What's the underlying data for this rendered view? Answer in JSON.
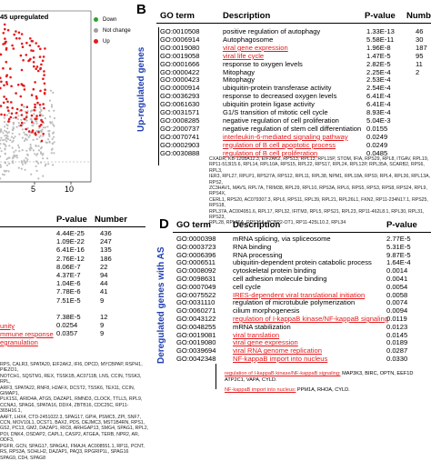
{
  "panelA": {
    "upregulated_label": "45 upregulated",
    "legend": [
      {
        "label": "Down",
        "color": "#2ca02c"
      },
      {
        "label": "Not change",
        "color": "#9e9e9e"
      },
      {
        "label": "Up",
        "color": "#e41a1c"
      }
    ],
    "xticks": [
      "5",
      "10"
    ]
  },
  "panelB": {
    "label": "B",
    "vertical_label": "Up-regulated genes",
    "headers": {
      "go": "GO term",
      "desc": "Description",
      "p": "P-value",
      "n": "Numb"
    },
    "rows": [
      {
        "go": "GO:0010508",
        "desc": "positive regulation of autophagy",
        "p": "1.33E-13",
        "n": "46",
        "red": false
      },
      {
        "go": "GO:0006914",
        "desc": "Autophagosome",
        "p": "5.58E-11",
        "n": "30",
        "red": false
      },
      {
        "go": "GO:0019080",
        "desc": "viral gene expression",
        "p": "1.96E-8",
        "n": "187",
        "red": true
      },
      {
        "go": "GO:0019058",
        "desc": "viral life cycle",
        "p": "1.47E-5",
        "n": "95",
        "red": true
      },
      {
        "go": "GO:0001666",
        "desc": "response to oxygen levels",
        "p": "2.82E-5",
        "n": "11",
        "red": false
      },
      {
        "go": "GO:0000422",
        "desc": "Mitophagy",
        "p": "2.25E-4",
        "n": "2",
        "red": false
      },
      {
        "go": "GO:0000423",
        "desc": "Mitophagy",
        "p": "2.53E-4",
        "n": "",
        "red": false
      },
      {
        "go": "GO:0000914",
        "desc": "ubiquitin-protein transferase activity",
        "p": "2.54E-4",
        "n": "",
        "red": false
      },
      {
        "go": "GO:0036293",
        "desc": "response to decreased oxygen levels",
        "p": "6.41E-4",
        "n": "",
        "red": false
      },
      {
        "go": "GO:0061630",
        "desc": "ubiquitin protein ligase activity",
        "p": "6.41E-4",
        "n": "",
        "red": false
      },
      {
        "go": "GO:0031571",
        "desc": "G1/S transition of mitotic cell cycle",
        "p": "8.93E-4",
        "n": "",
        "red": false
      },
      {
        "go": "GO:0008285",
        "desc": "negative regulation of cell proliferation",
        "p": "5.04E-3",
        "n": "",
        "red": false
      },
      {
        "go": "GO:2000737",
        "desc": "negative regulation of stem cell differentiation",
        "p": "0.0155",
        "n": "",
        "red": false
      },
      {
        "go": "GO:0070741",
        "desc": "interleukin-6-mediated signaling pathway",
        "p": "0.0249",
        "n": "",
        "red": true
      },
      {
        "go": "GO:0002903",
        "desc": "regulation of B cell apoptotic process",
        "p": "0.0249",
        "n": "",
        "red": true
      },
      {
        "go": "GO:0030888",
        "desc": "regulation of B cell proliferation",
        "p": "0.0485",
        "n": "",
        "red": true
      }
    ],
    "genes": [
      "CXADR, KB-1208A12.3, EIF2AK2, RPS13, RPL13, RPL15P, STOM, IFIA, RPS29, RPL8, ITGAV, RPL19,",
      "RP11-513I15.6, RPL14, RPL10A, RPS15, RPL22, RPS17, RPL24, RPL12P, RPL35A, SCARB2, RPS6, RPL3,",
      "IER3, RPL27, RPLP1, RPS27A, RPS12, RPL11, RPL38, NPM1, RPL18A, RPS9, RPL4, RPL36, RPL13A, RPS2,",
      "ZC3HAV1, MAVS, RPL7A, TRIM38, RPL29, RPL10, RPS3A, RPL6, RPS5, RPS3, RPS8, RPS24, RPL9, RPS4X,",
      "CERL1, RPS20, AC079307.3, RPL6, RPS11, RPL39, RPL21, RPL26L1, FKN2, RP11-234N17.1, RPS25, RPS18,",
      "RPL37A, AC004951.6, RPL17, RPL32, IFITM3, RPL5, RPS21, RPL23, RP11-462L8.1, RPL30, RPL31, RPS23,",
      "RPL28, RPL36A, RPS15A, PCBP2-OT1, RP11-425L10.2, RPL34"
    ]
  },
  "panelC": {
    "headers": {
      "p": "P-value",
      "n": "Number"
    },
    "rows": [
      {
        "p": "4.44E-25",
        "n": "436"
      },
      {
        "p": "1.09E-22",
        "n": "247"
      },
      {
        "p": "6.41E-16",
        "n": "135"
      },
      {
        "p": "2.76E-12",
        "n": "186"
      },
      {
        "p": "8.06E-7",
        "n": "22"
      },
      {
        "p": "4.37E-7",
        "n": "94"
      },
      {
        "p": "1.04E-6",
        "n": "44"
      },
      {
        "p": "7.78E-6",
        "n": "41"
      },
      {
        "p": "7.51E-5",
        "n": "9"
      },
      {
        "p": "",
        "n": ""
      },
      {
        "p": "7.38E-5",
        "n": "12"
      },
      {
        "p": "0.0254",
        "n": "9"
      },
      {
        "p": "0.0357",
        "n": "9"
      }
    ],
    "red_fragments": [
      "unity",
      "mmune response",
      "egranulation"
    ],
    "genes": [
      "RPS, CALR3, SPATA20, EIF2AK2, IFI6, DPCD, MYCBPAP, RSPH1, PIEZO1,",
      "NOTCH1, SQSTM1, REX, TSSK1B, AC0711B, LNS, CCIN, TSSK3, RPL,",
      "ARF3, SPATA22, RNF8, H2AFX, DCST2, TSSK6, TEX11, CCIN, GIMAP1,",
      "PLK1S1, ARID4A, ATG5, DAZAP1, RMND3, CLOCK, TTLL5, RPL9,",
      "CCNA1, SPAG6, SPATA16, DDX4, ZBTB16, CDC25C, RP11-365H16.1,",
      "AAFT, LHX4, CTD-2451022.3, SPAG17, GPI4, PSMC5, ZPI, SNF7,",
      "CCN, MOV10L1, DCST1, BAX2, PDS, DEJMC3, MST1B4RN, RPS1,",
      "GS2, PC13, GM2, DAZAP1, RIC8, ARHGAP13, SMG4, SPAG1, RPL2,",
      "POI, DNK4, OSDAP2, CAPL1, CASP2, ATGEA, TERB, NPR2, AR, ODF3,",
      "PGFR, GCN, SPAG17, SPAGA1, FMAJ4, AC008551.1, RP11, PCNT,",
      "RS, RPS3A, SOHLH2, DAZAP1, PAQ3, RPGRIP1L, SPAG16",
      "SPAG9, CD4, SPAG8"
    ]
  },
  "panelD": {
    "label": "D",
    "vertical_label": "Deregulated genes with AS",
    "headers": {
      "go": "GO term",
      "desc": "Description",
      "p": "P-value"
    },
    "rows": [
      {
        "go": "GO:0000398",
        "desc": "mRNA splicing, via spliceosome",
        "p": "2.77E-5",
        "red": false
      },
      {
        "go": "GO:0003723",
        "desc": "RNA binding",
        "p": "5.31E-5",
        "red": false
      },
      {
        "go": "GO:0006396",
        "desc": "RNA processing",
        "p": "9.87E-5",
        "red": false
      },
      {
        "go": "GO:0006511",
        "desc": "ubiquitin-dependent protein catabolic process",
        "p": "1.64E-4",
        "red": false
      },
      {
        "go": "GO:0008092",
        "desc": "cytoskeletal protein binding",
        "p": "0.0014",
        "red": false
      },
      {
        "go": "GO:0098631",
        "desc": "cell adhesion molecule binding",
        "p": "0.0041",
        "red": false
      },
      {
        "go": "GO:0007049",
        "desc": "cell cycle",
        "p": "0.0054",
        "red": false
      },
      {
        "go": "GO:0075522",
        "desc": "IRES-dependent viral translational initiation",
        "p": "0.0058",
        "red": true
      },
      {
        "go": "GO:0031110",
        "desc": "regulation of microtubule polymerization",
        "p": "0.0074",
        "red": false
      },
      {
        "go": "GO:0060271",
        "desc": "cilium morphogenesis",
        "p": "0.0094",
        "red": false
      },
      {
        "go": "GO:0043122",
        "desc": "regulation of I-kappaB kinase/NF-kappaB signaling",
        "p": "0.0119",
        "red": true
      },
      {
        "go": "GO:0048255",
        "desc": "mRNA stabilization",
        "p": "0.0123",
        "red": false
      },
      {
        "go": "GO:0019081",
        "desc": "viral translation",
        "p": "0.0145",
        "red": true
      },
      {
        "go": "GO:0019080",
        "desc": "viral gene expression",
        "p": "0.0189",
        "red": true
      },
      {
        "go": "GO:0039694",
        "desc": "viral RNA genome replication",
        "p": "0.0287",
        "red": true
      },
      {
        "go": "GO:0042348",
        "desc": "NF-kappaB import into nucleus",
        "p": "0.0330",
        "red": true
      }
    ],
    "nfkb_red": "regulation of I-kappaB kinase/NF-kappaB signaling:",
    "nfkb_genes": "MAP3K3, BIRC, OPTN, EEF1D",
    "nfkb_genes2": "ATP2C1, VAPA, CYLD.",
    "import_red": "NF-kappaB import into nucleus:",
    "import_genes": "PPM1A, RHOA, CYLD."
  }
}
